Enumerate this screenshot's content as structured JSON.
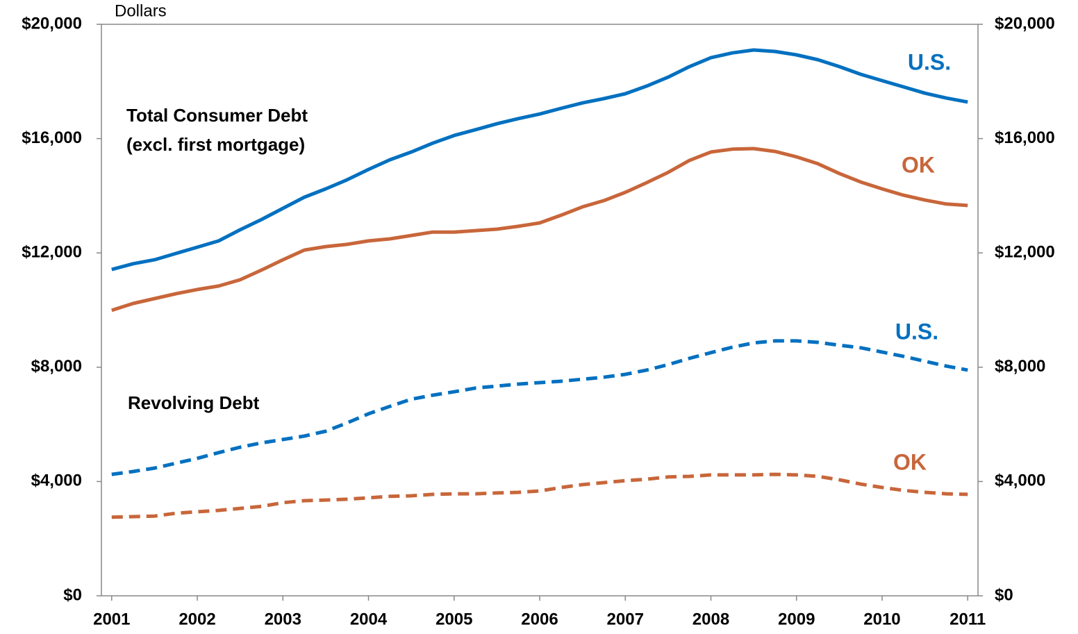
{
  "chart_data": {
    "type": "line",
    "y_label": "Dollars",
    "annotations": [
      "Total Consumer Debt",
      "(excl. first mortgage)",
      "Revolving Debt"
    ],
    "x": [
      2001,
      2001.25,
      2001.5,
      2001.75,
      2002,
      2002.25,
      2002.5,
      2002.75,
      2003,
      2003.25,
      2003.5,
      2003.75,
      2004,
      2004.25,
      2004.5,
      2004.75,
      2005,
      2005.25,
      2005.5,
      2005.75,
      2006,
      2006.25,
      2006.5,
      2006.75,
      2007,
      2007.25,
      2007.5,
      2007.75,
      2008,
      2008.25,
      2008.5,
      2008.75,
      2009,
      2009.25,
      2009.5,
      2009.75,
      2010,
      2010.25,
      2010.5,
      2010.75,
      2011
    ],
    "series": [
      {
        "name": "U.S.",
        "color": "#0070c0",
        "dash": false,
        "values": [
          11420,
          11620,
          11760,
          11980,
          12200,
          12420,
          12810,
          13170,
          13560,
          13950,
          14240,
          14560,
          14920,
          15260,
          15530,
          15840,
          16110,
          16310,
          16520,
          16700,
          16860,
          17060,
          17250,
          17400,
          17570,
          17840,
          18150,
          18520,
          18830,
          19000,
          19100,
          19050,
          18930,
          18760,
          18520,
          18250,
          18030,
          17810,
          17590,
          17420,
          17280
        ]
      },
      {
        "name": "OK",
        "color": "#c8663a",
        "dash": false,
        "values": [
          9990,
          10230,
          10400,
          10570,
          10720,
          10840,
          11060,
          11400,
          11760,
          12100,
          12220,
          12300,
          12420,
          12490,
          12610,
          12730,
          12730,
          12780,
          12830,
          12930,
          13050,
          13320,
          13610,
          13830,
          14120,
          14460,
          14820,
          15240,
          15530,
          15630,
          15650,
          15550,
          15360,
          15120,
          14780,
          14480,
          14240,
          14020,
          13850,
          13710,
          13660
        ]
      },
      {
        "name": "U.S.",
        "color": "#0070c0",
        "dash": true,
        "values": [
          4250,
          4350,
          4470,
          4640,
          4810,
          5010,
          5200,
          5350,
          5470,
          5590,
          5760,
          6050,
          6370,
          6630,
          6880,
          7020,
          7140,
          7270,
          7340,
          7410,
          7460,
          7510,
          7580,
          7650,
          7750,
          7900,
          8090,
          8310,
          8510,
          8700,
          8850,
          8920,
          8920,
          8870,
          8770,
          8680,
          8530,
          8380,
          8210,
          8040,
          7900
        ]
      },
      {
        "name": "OK",
        "color": "#c8663a",
        "dash": true,
        "values": [
          2750,
          2770,
          2790,
          2890,
          2940,
          2990,
          3060,
          3130,
          3260,
          3330,
          3350,
          3380,
          3430,
          3480,
          3500,
          3550,
          3570,
          3570,
          3600,
          3620,
          3670,
          3790,
          3890,
          3960,
          4030,
          4080,
          4160,
          4180,
          4230,
          4230,
          4230,
          4250,
          4230,
          4180,
          4060,
          3910,
          3790,
          3690,
          3620,
          3570,
          3550
        ]
      }
    ],
    "xlim": [
      2000.88,
      2011.12
    ],
    "xticks": [
      2001,
      2002,
      2003,
      2004,
      2005,
      2006,
      2007,
      2008,
      2009,
      2010,
      2011
    ],
    "ylim": [
      0,
      20000
    ],
    "yticks": [
      {
        "value": 0,
        "label": "$0"
      },
      {
        "value": 4000,
        "label": "$4,000"
      },
      {
        "value": 8000,
        "label": "$8,000"
      },
      {
        "value": 12000,
        "label": "$12,000"
      },
      {
        "value": 16000,
        "label": "$16,000"
      },
      {
        "value": 20000,
        "label": "$20,000"
      }
    ],
    "y2lim": [
      0,
      20000
    ],
    "y2ticks": [
      {
        "value": 0,
        "label": "$0"
      },
      {
        "value": 4000,
        "label": "$4,000"
      },
      {
        "value": 8000,
        "label": "$8,000"
      },
      {
        "value": 12000,
        "label": "$12,000"
      },
      {
        "value": 16000,
        "label": "$16,000"
      },
      {
        "value": 20000,
        "label": "$20,000"
      }
    ],
    "grid": false
  }
}
